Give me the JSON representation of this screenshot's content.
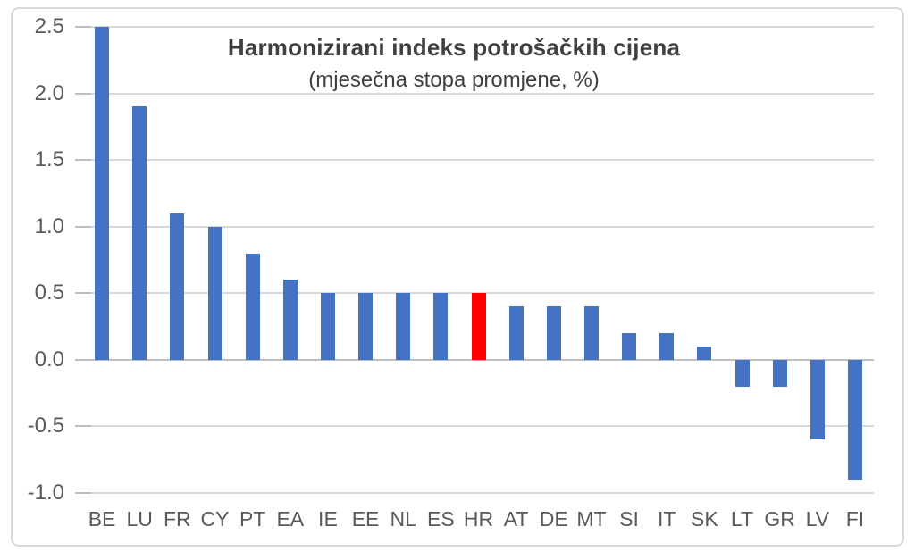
{
  "chart_data": {
    "type": "bar",
    "title": "Harmonizirani indeks potrošačkih cijena",
    "subtitle": "(mjesečna stopa promjene, %)",
    "categories": [
      "BE",
      "LU",
      "FR",
      "CY",
      "PT",
      "EA",
      "IE",
      "EE",
      "NL",
      "ES",
      "HR",
      "AT",
      "DE",
      "MT",
      "SI",
      "IT",
      "SK",
      "LT",
      "GR",
      "LV",
      "FI"
    ],
    "values": [
      2.5,
      1.9,
      1.1,
      1.0,
      0.8,
      0.6,
      0.5,
      0.5,
      0.5,
      0.5,
      0.5,
      0.4,
      0.4,
      0.4,
      0.2,
      0.2,
      0.1,
      -0.2,
      -0.2,
      -0.6,
      -0.9
    ],
    "highlight_category": "HR",
    "series_color": "#4472c4",
    "highlight_color": "#ff0000",
    "ylim": [
      -1.0,
      2.5
    ],
    "yticks": [
      2.5,
      2.0,
      1.5,
      1.0,
      0.5,
      0.0,
      -0.5,
      -1.0
    ],
    "ytick_labels": [
      "2.5",
      "2.0",
      "1.5",
      "1.0",
      "0.5",
      "0.0",
      "-0.5",
      "-1.0"
    ],
    "grid": true,
    "legend": "none",
    "xlabel": "",
    "ylabel": "",
    "colors": {
      "gridline": "#d9d9d9",
      "axis_line": "#bfbfbf",
      "tick_label": "#595959",
      "title_text": "#404040",
      "frame_border": "#d9d9d9",
      "background": "#ffffff"
    }
  }
}
